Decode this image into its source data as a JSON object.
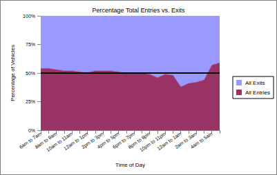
{
  "chart_data": {
    "type": "area",
    "title": "Percentage Total Entries vs. Exits",
    "x_label": "Time of Day",
    "y_label": "Percentage of Vehicles",
    "categories": [
      "6am to 7am",
      null,
      "8am to 9am",
      null,
      "10am to 11am",
      null,
      "12am to 1pm",
      null,
      "2pm to 3pm",
      null,
      "4pm to 5pm",
      null,
      "6pm to 7pm",
      null,
      "8pm to 9pm",
      null,
      "10pm to 11pm",
      null,
      "12am to 1am",
      null,
      "2am to 3am",
      null,
      "4am to 5am",
      null
    ],
    "series": [
      {
        "name": "All Entries",
        "color": "#993366",
        "values": [
          54,
          54,
          53,
          52,
          52,
          51,
          50.5,
          52,
          52,
          52,
          51,
          50,
          50,
          50,
          49,
          46,
          49,
          48,
          38,
          41,
          42,
          44,
          57,
          59
        ]
      },
      {
        "name": "All Exits",
        "color": "#9999ff",
        "values": [
          46,
          46,
          47,
          48,
          48,
          49,
          49.5,
          48,
          48,
          48,
          49,
          50,
          50,
          50,
          51,
          54,
          51,
          52,
          62,
          59,
          58,
          56,
          43,
          41
        ]
      }
    ],
    "stacked": true,
    "ylim": [
      0,
      100
    ],
    "yticks": [
      {
        "value": 0,
        "label": "0%"
      },
      {
        "value": 25,
        "label": "25%"
      },
      {
        "value": 50,
        "label": "50%"
      },
      {
        "value": 75,
        "label": "75%"
      },
      {
        "value": 100,
        "label": "100%"
      }
    ],
    "hline": 50,
    "legend": "right",
    "grid": false
  }
}
